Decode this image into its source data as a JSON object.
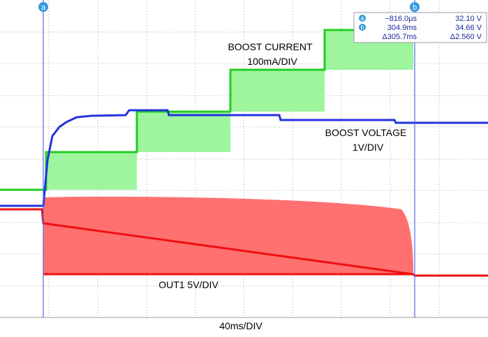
{
  "cursors": {
    "a": {
      "marker": "a",
      "time": "−816.0µs",
      "voltage": "32.10 V"
    },
    "b": {
      "marker": "b",
      "time": "304.9ms",
      "voltage": "34.66 V"
    },
    "delta": {
      "time": "Δ305.7ms",
      "voltage": "Δ2.560 V"
    }
  },
  "labels": {
    "boost_current": "BOOST CURRENT",
    "boost_current_scale": "100mA/DIV",
    "boost_voltage": "BOOST VOLTAGE",
    "boost_voltage_scale": "1V/DIV",
    "out1": "OUT1 5V/DIV",
    "timebase": "40ms/DIV"
  }
}
